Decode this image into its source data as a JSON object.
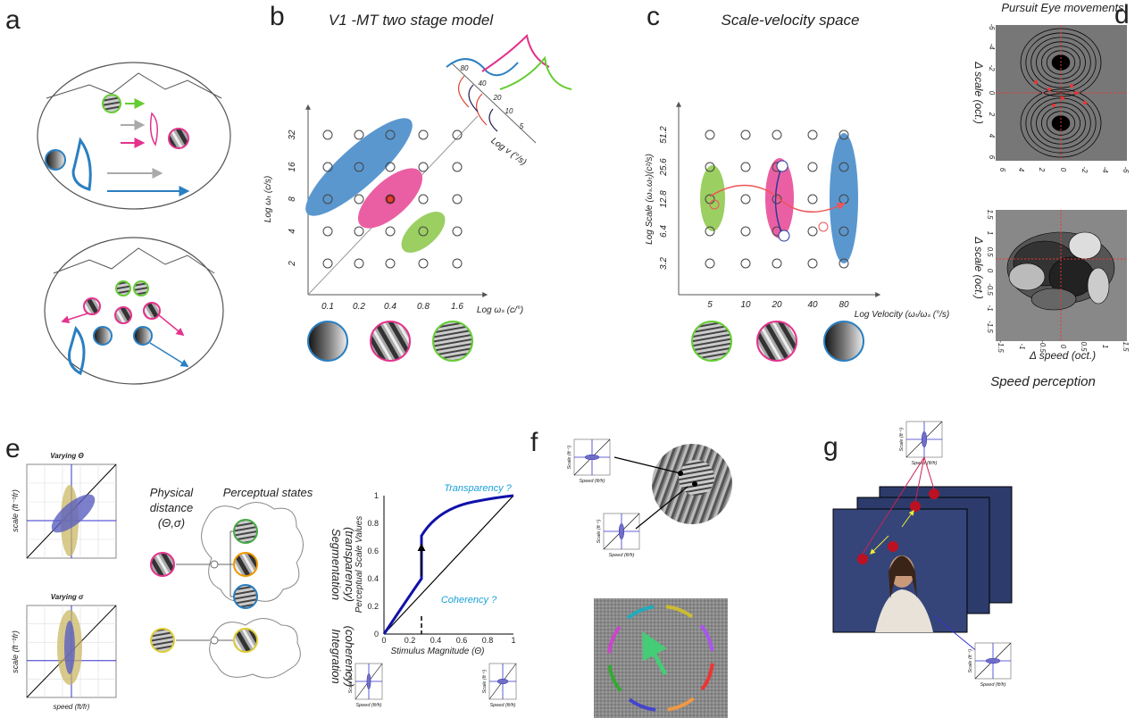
{
  "panel_labels": [
    "a",
    "b",
    "c",
    "d",
    "e",
    "f",
    "g"
  ],
  "b": {
    "title": "V1 -MT two stage model",
    "y_label": "Log ωₜ (c/s)",
    "y_ticks": [
      2,
      4,
      8,
      16,
      32
    ],
    "x_label": "Log ωₛ (c/°)",
    "x_ticks": [
      0.1,
      0.2,
      0.4,
      0.8,
      1.6
    ],
    "inset_ticks": [
      80,
      40,
      20,
      10,
      5
    ],
    "inset_label": "Log v (°/s)"
  },
  "c": {
    "title": "Scale-velocity space",
    "y_label": "Log Scale (ωₛ.ωₜ)(c²/s)",
    "y_ticks": [
      3.2,
      6.4,
      12.8,
      25.6,
      51.2
    ],
    "x_label": "Log Velocity (ωₜ/ωₛ (°/s)",
    "x_ticks": [
      5,
      10,
      20,
      40,
      80
    ]
  },
  "d": {
    "title": "Pursuit Eye movements",
    "top": {
      "y_label": "Δ scale (oct.)",
      "y_ticks": [
        -6,
        -4,
        -2,
        0,
        2,
        4,
        6
      ],
      "x_ticks": [
        6,
        4,
        2,
        0,
        -2,
        -4,
        -6
      ]
    },
    "bottom": {
      "y_label": "Δ scale (oct.)",
      "y_ticks": [
        1.5,
        1,
        0.5,
        0,
        -0.5,
        -1,
        -1.5
      ],
      "x_ticks": [
        -1.5,
        -1,
        -0.5,
        0,
        0.5,
        1,
        1.5
      ],
      "x_label": "Δ speed (oct.)"
    },
    "caption": "Speed perception"
  },
  "e": {
    "varying_theta": {
      "title": "Varying Θ",
      "y_label": "scale (ft⁻¹fr)"
    },
    "varying_sigma": {
      "title": "Varying σ",
      "y_label": "scale (ft⁻¹fr)",
      "x_label": "speed (ft/fr)"
    },
    "physical": [
      "Physical",
      "distance",
      "(Θ,σ)"
    ],
    "perceptual": "Perceptual states",
    "segmentation": [
      "Segmentation",
      "(transparency)"
    ],
    "integration": [
      "Integration",
      "(coherency)"
    ],
    "plot": {
      "y_label": "Perceptual Scale Values",
      "x_label": "Stimulus Magnitude (Θ)",
      "y_ticks": [
        0,
        0.2,
        0.4,
        0.6,
        0.8,
        1
      ],
      "x_ticks": [
        0,
        0.2,
        0.4,
        0.6,
        0.8,
        1
      ],
      "transparency": "Transparency ?",
      "coherency": "Coherency ?"
    },
    "insets": [
      {
        "y_label": "Scale (ft⁻¹)",
        "x_label": "Speed (ft/fr)"
      },
      {
        "y_label": "Scale (ft⁻¹)",
        "x_label": "Speed (ft/fr)"
      }
    ]
  },
  "f": {
    "insets": [
      {
        "y_label": "Scale (ft⁻¹)",
        "x_label": "Speed (ft/fr)"
      },
      {
        "y_label": "Scale (ft⁻¹)",
        "x_label": "Speed (ft/fr)"
      }
    ]
  },
  "g": {
    "insets": [
      {
        "y_label": "Scale (ft⁻¹)",
        "x_label": "Speed (ft/fr)"
      },
      {
        "y_label": "Scale (ft⁻¹)",
        "x_label": "Speed (ft/fr)"
      }
    ]
  }
}
